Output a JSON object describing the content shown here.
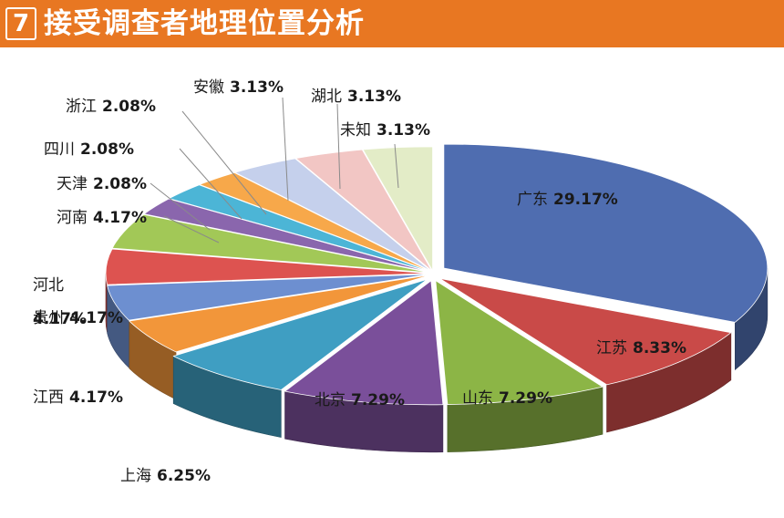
{
  "header": {
    "badge": "7",
    "title": "接受调查者地理位置分析",
    "bg_color": "#e87722"
  },
  "chart_data": {
    "type": "pie",
    "variant": "3d-exploded",
    "title": "接受调查者地理位置分析",
    "slices": [
      {
        "name": "广东",
        "value": 29.17,
        "label": "29.17%",
        "color": "#4f6db0"
      },
      {
        "name": "江苏",
        "value": 8.33,
        "label": "8.33%",
        "color": "#c94a48"
      },
      {
        "name": "山东",
        "value": 7.29,
        "label": "7.29%",
        "color": "#8cb546"
      },
      {
        "name": "北京",
        "value": 7.29,
        "label": "7.29%",
        "color": "#7a4f9a"
      },
      {
        "name": "上海",
        "value": 6.25,
        "label": "6.25%",
        "color": "#3f9ec2"
      },
      {
        "name": "江西",
        "value": 4.17,
        "label": "4.17%",
        "color": "#f2963a"
      },
      {
        "name": "贵州",
        "value": 4.17,
        "label": "4.17%",
        "color": "#6d8fd0"
      },
      {
        "name": "河北",
        "value": 4.17,
        "label": "4.17%",
        "color": "#dd5350"
      },
      {
        "name": "河南",
        "value": 4.17,
        "label": "4.17%",
        "color": "#a2c857"
      },
      {
        "name": "天津",
        "value": 2.08,
        "label": "2.08%",
        "color": "#8a66ad"
      },
      {
        "name": "四川",
        "value": 2.08,
        "label": "2.08%",
        "color": "#4cb5d6"
      },
      {
        "name": "浙江",
        "value": 2.08,
        "label": "2.08%",
        "color": "#f7a84a"
      },
      {
        "name": "安徽",
        "value": 3.13,
        "label": "3.13%",
        "color": "#c5d0ec"
      },
      {
        "name": "湖北",
        "value": 3.13,
        "label": "3.13%",
        "color": "#f2c6c4"
      },
      {
        "name": "未知",
        "value": 3.13,
        "label": "3.13%",
        "color": "#e3ecc7"
      }
    ]
  }
}
